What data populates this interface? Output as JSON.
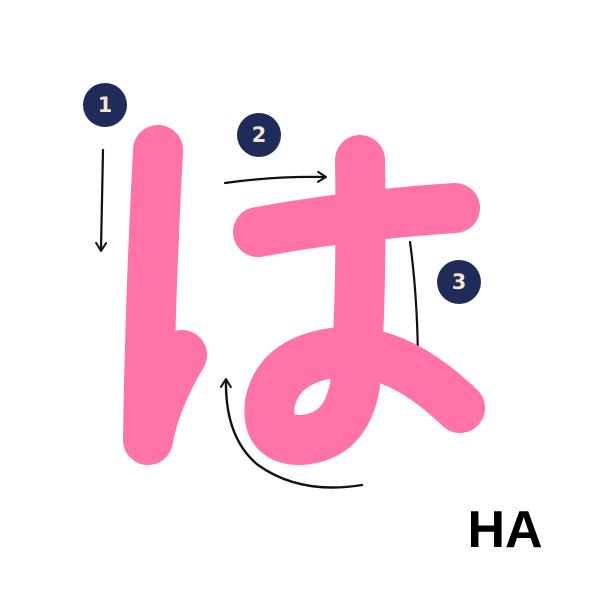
{
  "romanization": "HA",
  "steps": [
    {
      "number": "1"
    },
    {
      "number": "2"
    },
    {
      "number": "3"
    }
  ],
  "colors": {
    "character_stroke": "#FF73A8",
    "step_badge_fill": "#1F2C5A",
    "step_badge_text": "#F4E4CF",
    "arrow": "#111111",
    "label": "#000000",
    "background": "#FFFFFF"
  }
}
